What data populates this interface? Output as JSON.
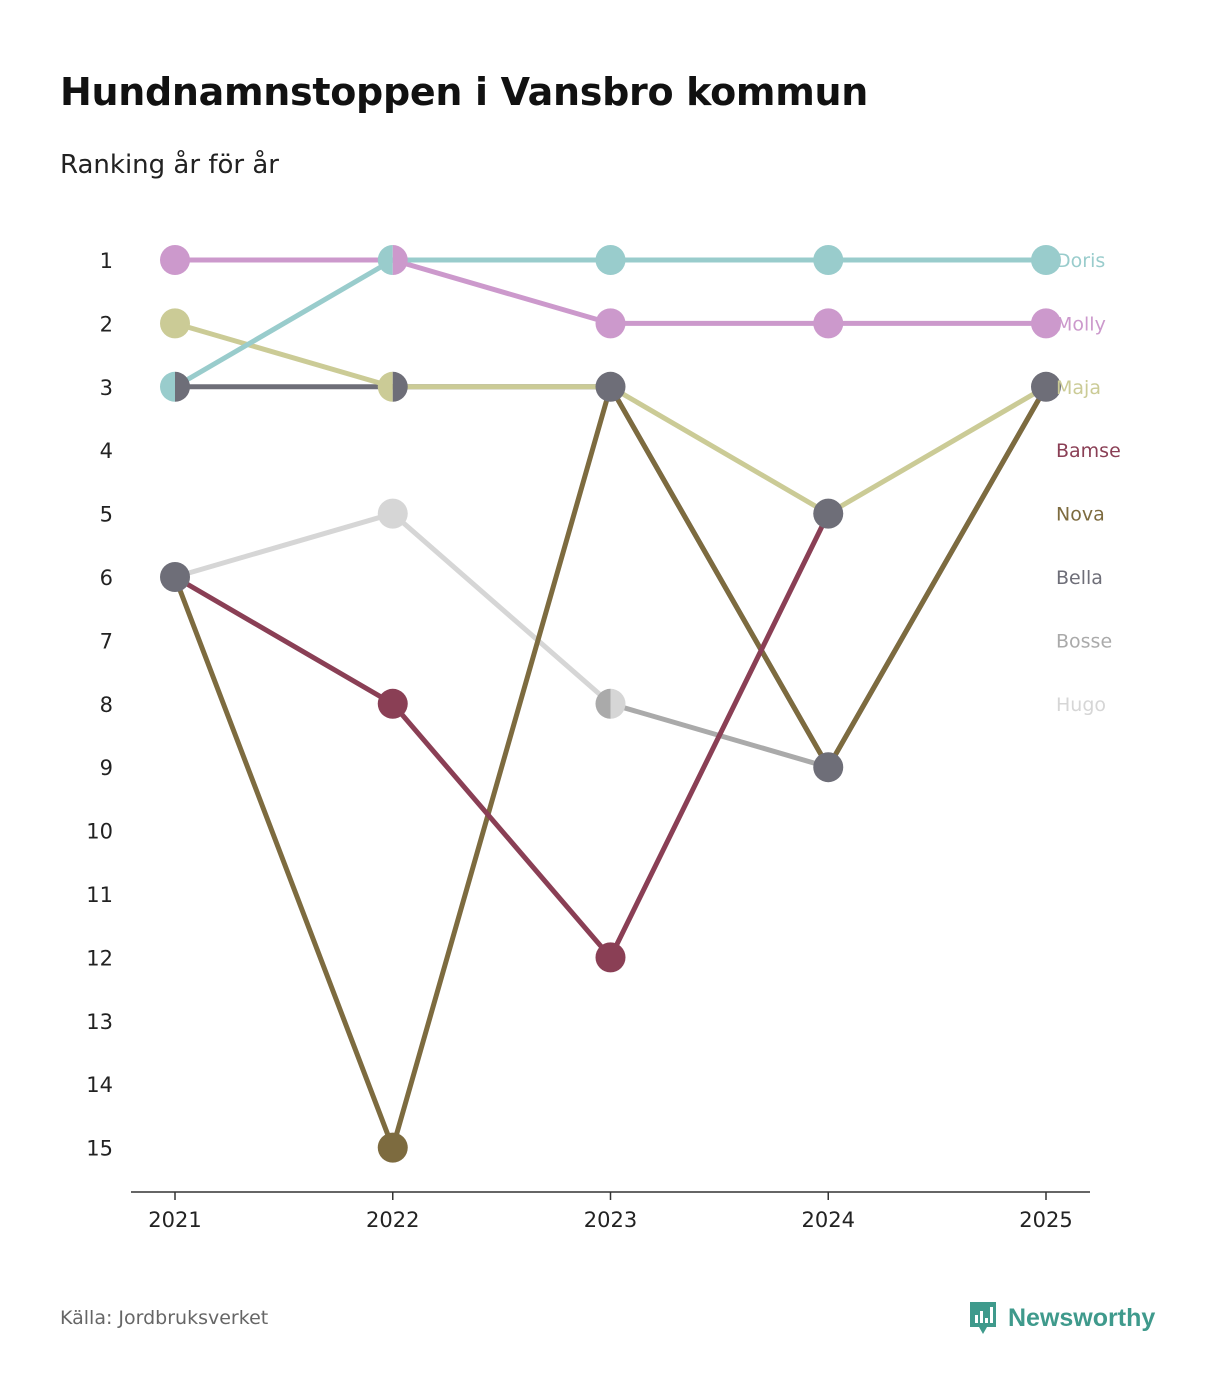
{
  "header": {
    "title": "Hundnamnstoppen i Vansbro kommun",
    "subtitle": "Ranking år för år"
  },
  "footer": {
    "source": "Källa: Jordbruksverket",
    "brand": "Newsworthy",
    "brand_color": "#3f9a8c"
  },
  "chart_data": {
    "type": "line",
    "title": "Hundnamnstoppen i Vansbro kommun",
    "subtitle": "Ranking år för år",
    "x": [
      "2021",
      "2022",
      "2023",
      "2024",
      "2025"
    ],
    "y_ticks": [
      1,
      2,
      3,
      4,
      5,
      6,
      7,
      8,
      9,
      10,
      11,
      12,
      13,
      14,
      15
    ],
    "ylim": [
      1,
      15
    ],
    "y_inverted": true,
    "xlabel": "",
    "ylabel": "",
    "legend": "right",
    "series": [
      {
        "name": "Hugo",
        "color": "#d6d6d6",
        "values": [
          6,
          5,
          8,
          null,
          null
        ]
      },
      {
        "name": "Bosse",
        "color": "#aaaaaa",
        "values": [
          null,
          null,
          8,
          9,
          null
        ]
      },
      {
        "name": "Bella",
        "color": "#6e6e78",
        "values": [
          3,
          3,
          3,
          9,
          3
        ]
      },
      {
        "name": "Nova",
        "color": "#7d6b3f",
        "values": [
          6,
          15,
          3,
          9,
          3
        ]
      },
      {
        "name": "Bamse",
        "color": "#8a3f55",
        "values": [
          6,
          8,
          12,
          5,
          null
        ]
      },
      {
        "name": "Maja",
        "color": "#cbcb96",
        "values": [
          2,
          3,
          3,
          5,
          3
        ]
      },
      {
        "name": "Molly",
        "color": "#cc99cc",
        "values": [
          1,
          1,
          2,
          2,
          2
        ]
      },
      {
        "name": "Doris",
        "color": "#99cccc",
        "values": [
          3,
          1,
          1,
          1,
          1
        ]
      }
    ],
    "legend_order": [
      "Doris",
      "Molly",
      "Maja",
      "Bamse",
      "Nova",
      "Bella",
      "Bosse",
      "Hugo"
    ],
    "marker_overrides": [
      {
        "x": "2021",
        "rank": 3,
        "left": "Doris",
        "right": "Bella"
      },
      {
        "x": "2021",
        "rank": 6,
        "fill": "Bella"
      },
      {
        "x": "2022",
        "rank": 1,
        "left": "Doris",
        "right": "Molly"
      },
      {
        "x": "2022",
        "rank": 3,
        "left": "Maja",
        "right": "Bella"
      },
      {
        "x": "2023",
        "rank": 3,
        "fill": "Bella"
      },
      {
        "x": "2023",
        "rank": 8,
        "left": "Bosse",
        "right": "Hugo"
      },
      {
        "x": "2024",
        "rank": 5,
        "fill": "Bella"
      },
      {
        "x": "2024",
        "rank": 9,
        "fill": "Bella"
      },
      {
        "x": "2025",
        "rank": 3,
        "fill": "Bella"
      }
    ]
  }
}
